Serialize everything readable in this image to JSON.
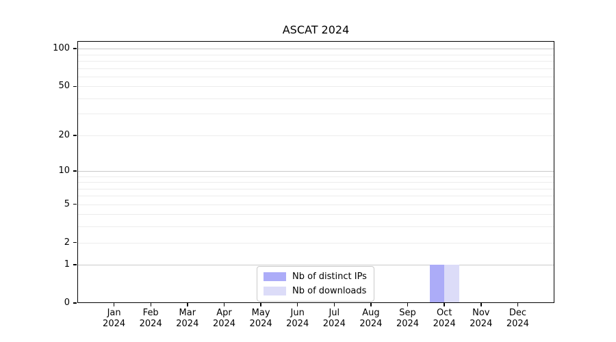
{
  "chart_data": {
    "type": "bar",
    "title": "ASCAT 2024",
    "yscale": "log1p",
    "ylim": [
      0,
      115
    ],
    "grid": "horizontal",
    "legend_position": "bottom-center",
    "x_tick_months": [
      "Jan",
      "Feb",
      "Mar",
      "Apr",
      "May",
      "Jun",
      "Jul",
      "Aug",
      "Sep",
      "Oct",
      "Nov",
      "Dec"
    ],
    "x_tick_year": "2024",
    "y_major_ticks": [
      0,
      1,
      2,
      5,
      10,
      20,
      50,
      100
    ],
    "y_major_grid": [
      1,
      10,
      100
    ],
    "y_minor_grid": [
      2,
      3,
      4,
      5,
      6,
      7,
      8,
      9,
      20,
      30,
      40,
      50,
      60,
      70,
      80,
      90
    ],
    "bar_width_fraction": 0.4,
    "series": [
      {
        "name": "Nb of distinct IPs",
        "color": "#acacf8",
        "values": [
          0,
          0,
          0,
          0,
          0,
          0,
          0,
          0,
          0,
          1,
          0,
          0
        ]
      },
      {
        "name": "Nb of downloads",
        "color": "#dcdcf8",
        "values": [
          0,
          0,
          0,
          0,
          0,
          0,
          0,
          0,
          0,
          1,
          0,
          0
        ]
      }
    ],
    "colors": {
      "grid_major": "#c9c9c9",
      "grid_minor": "#ececec",
      "spine": "#000000",
      "background": "#ffffff"
    }
  }
}
